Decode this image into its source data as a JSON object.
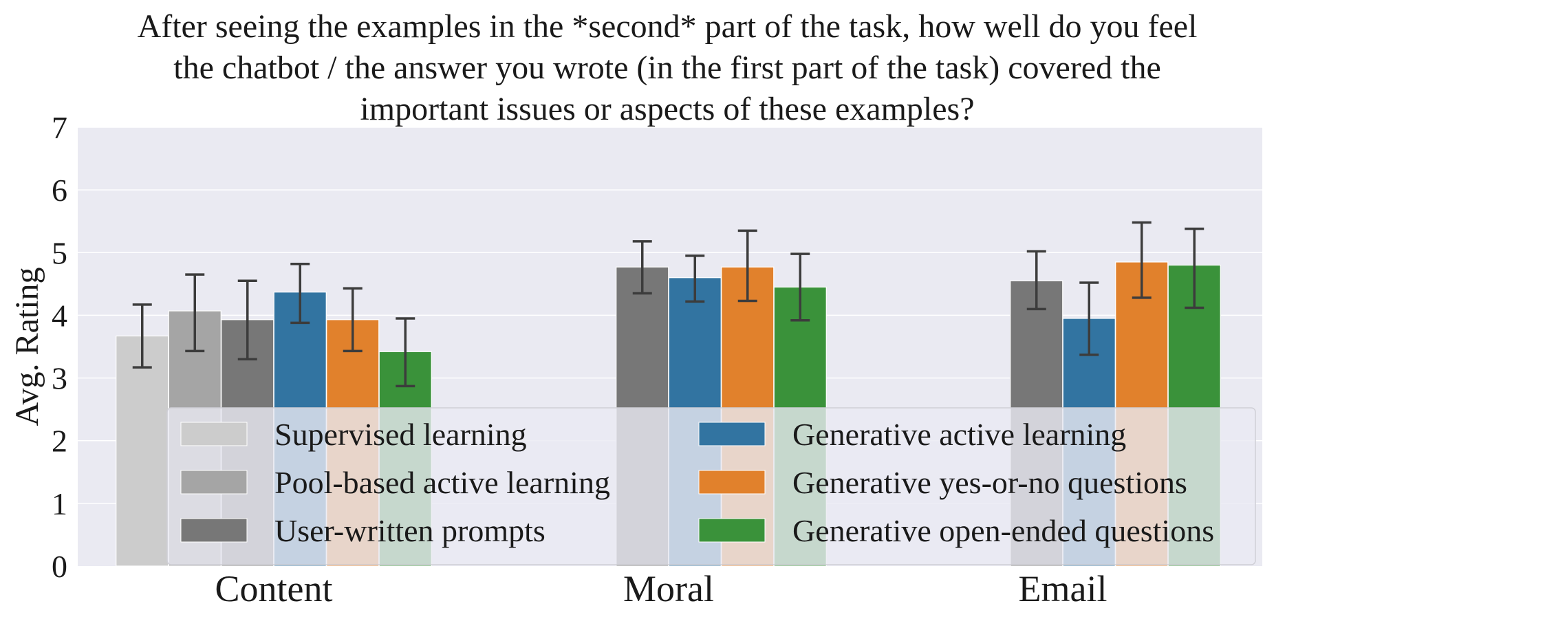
{
  "chart_data": {
    "type": "bar",
    "title_lines": [
      "After seeing the examples in the *second* part of the task, how well do you feel",
      "the chatbot / the answer you wrote (in the first part of the task) covered the",
      "important issues or aspects of these examples?"
    ],
    "xlabel": "",
    "ylabel": "Avg. Rating",
    "ylim": [
      0,
      7
    ],
    "yticks": [
      "0",
      "1",
      "2",
      "3",
      "4",
      "5",
      "6",
      "7"
    ],
    "grid": true,
    "legend_placement": "lower-center, two columns",
    "categories": [
      "Content",
      "Moral",
      "Email"
    ],
    "series": [
      {
        "name": "Supervised learning",
        "color": "#cccccc",
        "values": [
          3.67,
          null,
          null
        ],
        "err_low": [
          3.17,
          null,
          null
        ],
        "err_high": [
          4.17,
          null,
          null
        ]
      },
      {
        "name": "Pool-based active learning",
        "color": "#a5a5a5",
        "values": [
          4.07,
          null,
          null
        ],
        "err_low": [
          3.43,
          null,
          null
        ],
        "err_high": [
          4.65,
          null,
          null
        ]
      },
      {
        "name": "User-written prompts",
        "color": "#777777",
        "values": [
          3.93,
          4.77,
          4.55
        ],
        "err_low": [
          3.3,
          4.35,
          4.1
        ],
        "err_high": [
          4.55,
          5.18,
          5.02
        ]
      },
      {
        "name": "Generative active learning",
        "color": "#3274a1",
        "values": [
          4.37,
          4.6,
          3.95
        ],
        "err_low": [
          3.88,
          4.22,
          3.37
        ],
        "err_high": [
          4.82,
          4.95,
          4.52
        ]
      },
      {
        "name": "Generative yes-or-no questions",
        "color": "#e1812c",
        "values": [
          3.93,
          4.77,
          4.85
        ],
        "err_low": [
          3.43,
          4.23,
          4.28
        ],
        "err_high": [
          4.43,
          5.35,
          5.48
        ]
      },
      {
        "name": "Generative open-ended questions",
        "color": "#3a923a",
        "values": [
          3.42,
          4.45,
          4.8
        ],
        "err_low": [
          2.87,
          3.92,
          4.12
        ],
        "err_high": [
          3.95,
          4.98,
          5.38
        ]
      }
    ],
    "colors": {
      "plot_background": "#eaeaf2",
      "grid": "#ffffff",
      "error_bar": "#3c3c3c",
      "legend_background": "#eaeaf2"
    }
  }
}
